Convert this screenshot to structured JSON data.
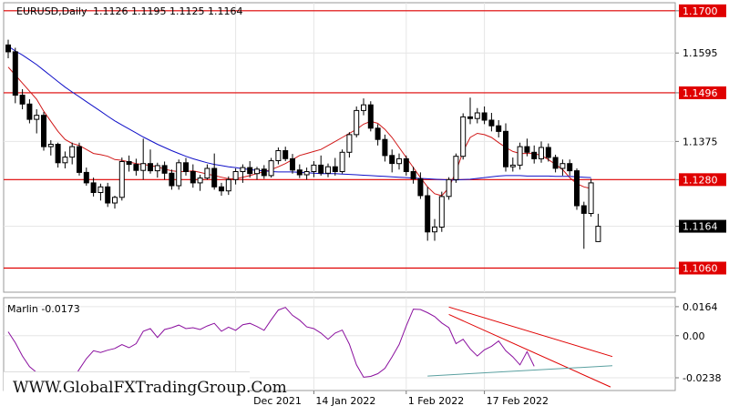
{
  "header": {
    "symbol_label": "EURUSD,Daily",
    "ohlc_text": "1.1126 1.1195 1.1125 1.1164"
  },
  "watermark": "WWW.GlobalFXTradingGroup.Com",
  "colors": {
    "bull_body": "#ffffff",
    "bear_body": "#000000",
    "candle_outline": "#000000",
    "level_line": "#e00000",
    "ma_fast": "#d01818",
    "ma_slow": "#1010c8",
    "oscillator": "#8a0f9e",
    "channel": "#e00000",
    "support_line": "#5aa0a0",
    "label_bg": "#e00000",
    "label_text": "#ffffff",
    "grid": "#e6e6e6"
  },
  "chart_data": [
    {
      "type": "candlestick",
      "title": "EURUSD,Daily",
      "ylim": [
        1.1,
        1.172
      ],
      "y_ticks": [
        "1.1700",
        "1.1595",
        "1.1496",
        "1.1375",
        "1.1280",
        "1.1164",
        "1.1060"
      ],
      "levels": [
        {
          "value": 1.17,
          "label": "1.1700"
        },
        {
          "value": 1.1496,
          "label": "1.1496"
        },
        {
          "value": 1.128,
          "label": "1.1280"
        },
        {
          "value": 1.106,
          "label": "1.1060"
        }
      ],
      "current_price": {
        "value": 1.1164,
        "label": "1.1164"
      },
      "x_labels": [
        "29 Dec 2021",
        "14 Jan 2022",
        "1 Feb 2022",
        "17 Feb 2022"
      ],
      "x_label_index": [
        32,
        43,
        56,
        67
      ],
      "candles": [
        [
          1.1615,
          1.1628,
          1.1582,
          1.1598
        ],
        [
          1.1598,
          1.1608,
          1.147,
          1.149
        ],
        [
          1.149,
          1.1505,
          1.1455,
          1.1468
        ],
        [
          1.1468,
          1.148,
          1.142,
          1.143
        ],
        [
          1.143,
          1.1455,
          1.1395,
          1.144
        ],
        [
          1.144,
          1.1448,
          1.1352,
          1.1362
        ],
        [
          1.1362,
          1.1378,
          1.134,
          1.1368
        ],
        [
          1.1368,
          1.1372,
          1.131,
          1.1322
        ],
        [
          1.1322,
          1.135,
          1.1308,
          1.1336
        ],
        [
          1.1336,
          1.1372,
          1.1318,
          1.1362
        ],
        [
          1.1362,
          1.1372,
          1.129,
          1.1298
        ],
        [
          1.1298,
          1.131,
          1.1265,
          1.1272
        ],
        [
          1.1272,
          1.1285,
          1.1238,
          1.1248
        ],
        [
          1.1248,
          1.127,
          1.1228,
          1.1262
        ],
        [
          1.1262,
          1.1272,
          1.1212,
          1.1222
        ],
        [
          1.1222,
          1.124,
          1.1208,
          1.1236
        ],
        [
          1.1236,
          1.1335,
          1.1228,
          1.1325
        ],
        [
          1.1325,
          1.134,
          1.13,
          1.1318
        ],
        [
          1.1318,
          1.1332,
          1.129,
          1.1303
        ],
        [
          1.1303,
          1.1382,
          1.128,
          1.132
        ],
        [
          1.132,
          1.1355,
          1.1295,
          1.1302
        ],
        [
          1.1302,
          1.1322,
          1.1285,
          1.1315
        ],
        [
          1.1315,
          1.1325,
          1.128,
          1.1296
        ],
        [
          1.1296,
          1.1305,
          1.1255,
          1.1265
        ],
        [
          1.1265,
          1.133,
          1.1255,
          1.1322
        ],
        [
          1.1322,
          1.1334,
          1.129,
          1.13
        ],
        [
          1.13,
          1.1318,
          1.126,
          1.1272
        ],
        [
          1.1272,
          1.1292,
          1.1252,
          1.1284
        ],
        [
          1.1284,
          1.1318,
          1.128,
          1.1308
        ],
        [
          1.1308,
          1.1345,
          1.1255,
          1.1262
        ],
        [
          1.1262,
          1.1272,
          1.124,
          1.1252
        ],
        [
          1.1252,
          1.1288,
          1.1242,
          1.128
        ],
        [
          1.128,
          1.1308,
          1.1268,
          1.13
        ],
        [
          1.13,
          1.1318,
          1.1272,
          1.131
        ],
        [
          1.131,
          1.1326,
          1.1285,
          1.1295
        ],
        [
          1.1295,
          1.1312,
          1.128,
          1.1306
        ],
        [
          1.1306,
          1.1316,
          1.1282,
          1.129
        ],
        [
          1.129,
          1.1334,
          1.1285,
          1.1327
        ],
        [
          1.1327,
          1.136,
          1.1318,
          1.1352
        ],
        [
          1.1352,
          1.1362,
          1.1326,
          1.1332
        ],
        [
          1.1332,
          1.1344,
          1.1295,
          1.1304
        ],
        [
          1.1304,
          1.1318,
          1.1284,
          1.1292
        ],
        [
          1.1292,
          1.131,
          1.128,
          1.13
        ],
        [
          1.13,
          1.1326,
          1.1286,
          1.1316
        ],
        [
          1.1316,
          1.134,
          1.129,
          1.1296
        ],
        [
          1.1296,
          1.132,
          1.1286,
          1.1312
        ],
        [
          1.1312,
          1.1334,
          1.129,
          1.13
        ],
        [
          1.13,
          1.1355,
          1.1295,
          1.1348
        ],
        [
          1.1348,
          1.1398,
          1.1335,
          1.1392
        ],
        [
          1.1392,
          1.1462,
          1.1385,
          1.1452
        ],
        [
          1.1452,
          1.1482,
          1.144,
          1.1466
        ],
        [
          1.1466,
          1.1475,
          1.14,
          1.1408
        ],
        [
          1.1408,
          1.1418,
          1.1365,
          1.138
        ],
        [
          1.138,
          1.1392,
          1.1325,
          1.134
        ],
        [
          1.134,
          1.1355,
          1.1298,
          1.132
        ],
        [
          1.132,
          1.1345,
          1.1305,
          1.1332
        ],
        [
          1.1332,
          1.134,
          1.129,
          1.13
        ],
        [
          1.13,
          1.1312,
          1.127,
          1.1282
        ],
        [
          1.1282,
          1.1298,
          1.1232,
          1.124
        ],
        [
          1.124,
          1.1262,
          1.1128,
          1.115
        ],
        [
          1.115,
          1.1182,
          1.1128,
          1.1162
        ],
        [
          1.1162,
          1.125,
          1.115,
          1.1238
        ],
        [
          1.1238,
          1.1286,
          1.123,
          1.128
        ],
        [
          1.128,
          1.1345,
          1.1272,
          1.1338
        ],
        [
          1.1338,
          1.1445,
          1.133,
          1.1436
        ],
        [
          1.1436,
          1.1484,
          1.1418,
          1.1432
        ],
        [
          1.1432,
          1.1458,
          1.142,
          1.1446
        ],
        [
          1.1446,
          1.1462,
          1.1418,
          1.1428
        ],
        [
          1.1428,
          1.1446,
          1.14,
          1.1414
        ],
        [
          1.1414,
          1.1428,
          1.1385,
          1.14
        ],
        [
          1.14,
          1.142,
          1.13,
          1.1312
        ],
        [
          1.1312,
          1.1335,
          1.13,
          1.1316
        ],
        [
          1.1316,
          1.1372,
          1.1305,
          1.1362
        ],
        [
          1.1362,
          1.1382,
          1.1338,
          1.1348
        ],
        [
          1.1348,
          1.1365,
          1.132,
          1.1332
        ],
        [
          1.1332,
          1.1375,
          1.1322,
          1.136
        ],
        [
          1.136,
          1.137,
          1.1325,
          1.1335
        ],
        [
          1.1335,
          1.1342,
          1.1298,
          1.1308
        ],
        [
          1.1308,
          1.133,
          1.129,
          1.132
        ],
        [
          1.132,
          1.133,
          1.129,
          1.1302
        ],
        [
          1.1302,
          1.1308,
          1.1205,
          1.1215
        ],
        [
          1.1215,
          1.1225,
          1.1108,
          1.1196
        ],
        [
          1.1196,
          1.1282,
          1.1188,
          1.1272
        ],
        [
          1.1126,
          1.1195,
          1.1125,
          1.1164
        ]
      ],
      "series": [
        {
          "values": [
            1.156,
            1.154,
            1.152,
            1.15,
            1.148,
            1.145,
            1.1425,
            1.14,
            1.138,
            1.137,
            1.1365,
            1.1355,
            1.1345,
            1.1342,
            1.1338,
            1.133,
            1.1328,
            1.1324,
            1.132,
            1.1318,
            1.1315,
            1.1312,
            1.1306,
            1.1302,
            1.13,
            1.13,
            1.1302,
            1.1298,
            1.1294,
            1.129,
            1.1286,
            1.1282,
            1.1282,
            1.1286,
            1.129,
            1.1295,
            1.13,
            1.1305,
            1.1312,
            1.132,
            1.133,
            1.134,
            1.1345,
            1.135,
            1.1355,
            1.1365,
            1.1375,
            1.1385,
            1.1395,
            1.1405,
            1.1418,
            1.1425,
            1.142,
            1.1405,
            1.1385,
            1.136,
            1.1335,
            1.131,
            1.1285,
            1.1262,
            1.1245,
            1.124,
            1.126,
            1.13,
            1.135,
            1.1385,
            1.1395,
            1.1392,
            1.1385,
            1.1372,
            1.136,
            1.135,
            1.1345,
            1.1345,
            1.1345,
            1.134,
            1.133,
            1.1318,
            1.1305,
            1.1285,
            1.127,
            1.1262,
            1.1258
          ]
        },
        {
          "values": [
            1.1612,
            1.16,
            1.159,
            1.1578,
            1.1566,
            1.1552,
            1.1538,
            1.1524,
            1.151,
            1.1498,
            1.1486,
            1.1474,
            1.1462,
            1.145,
            1.1438,
            1.1426,
            1.1416,
            1.1406,
            1.1396,
            1.1386,
            1.1377,
            1.1368,
            1.136,
            1.1352,
            1.1345,
            1.1338,
            1.1332,
            1.1327,
            1.1322,
            1.1318,
            1.1315,
            1.1312,
            1.131,
            1.1307,
            1.1305,
            1.1303,
            1.1302,
            1.13,
            1.1299,
            1.1299,
            1.1299,
            1.1298,
            1.1297,
            1.1296,
            1.1295,
            1.1295,
            1.1295,
            1.1294,
            1.1293,
            1.1292,
            1.1291,
            1.129,
            1.1289,
            1.1288,
            1.1287,
            1.1286,
            1.1285,
            1.1284,
            1.1283,
            1.1282,
            1.1281,
            1.128,
            1.1279,
            1.1279,
            1.128,
            1.1281,
            1.1283,
            1.1285,
            1.1287,
            1.1289,
            1.129,
            1.129,
            1.129,
            1.1289,
            1.1289,
            1.1289,
            1.1289,
            1.1288,
            1.1288,
            1.1288,
            1.1287,
            1.1286,
            1.1285
          ]
        }
      ]
    },
    {
      "type": "line",
      "title": "Marlin -0.0173",
      "ylim": [
        -0.031,
        0.0215
      ],
      "y_ticks": [
        "0.0164",
        "0.00",
        "-0.0238"
      ],
      "series": [
        {
          "name": "Marlin",
          "values": [
            0.0022,
            -0.004,
            -0.0115,
            -0.0175,
            -0.0208,
            -0.024,
            -0.026,
            -0.027,
            -0.0238,
            -0.0255,
            -0.019,
            -0.013,
            -0.0085,
            -0.0095,
            -0.0082,
            -0.0072,
            -0.005,
            -0.0068,
            -0.0045,
            0.0025,
            0.004,
            -0.001,
            0.0035,
            0.0045,
            0.006,
            0.004,
            0.0045,
            0.0035,
            0.0055,
            0.007,
            0.0025,
            0.0048,
            0.003,
            0.0062,
            0.007,
            0.0052,
            0.003,
            0.009,
            0.0145,
            0.016,
            0.0115,
            0.0088,
            0.005,
            0.004,
            0.0015,
            -0.002,
            0.0015,
            0.0032,
            -0.0048,
            -0.0165,
            -0.0235,
            -0.023,
            -0.0215,
            -0.0185,
            -0.012,
            -0.005,
            0.0055,
            0.015,
            0.0148,
            0.013,
            0.0108,
            0.0072,
            0.0045,
            -0.0045,
            -0.002,
            -0.0075,
            -0.0115,
            -0.008,
            -0.006,
            -0.003,
            -0.0085,
            -0.012,
            -0.0165,
            -0.009,
            -0.0173
          ]
        }
      ],
      "annotations": {
        "channel": "descending channel",
        "support": "rising support line"
      }
    }
  ]
}
